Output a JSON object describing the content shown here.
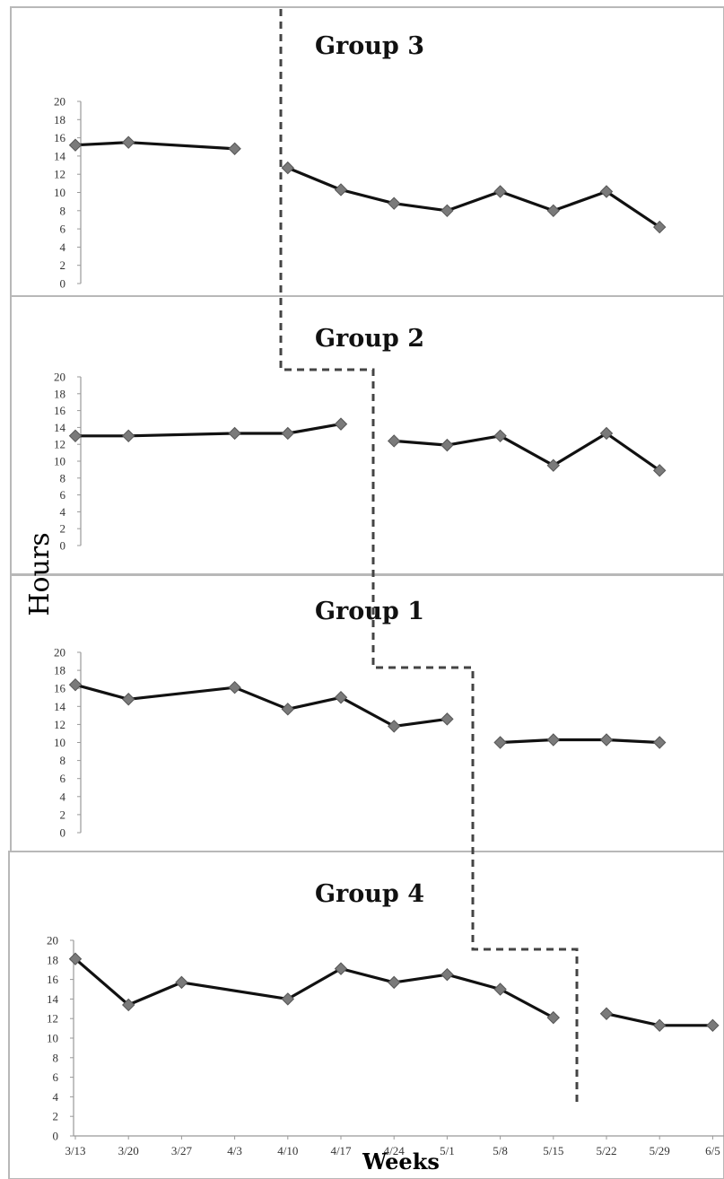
{
  "chart_data": {
    "type": "line",
    "ylabel": "Hours",
    "xlabel": "Weeks",
    "ylim": [
      0,
      20
    ],
    "yticks": [
      0,
      2,
      4,
      6,
      8,
      10,
      12,
      14,
      16,
      18,
      20
    ],
    "categories": [
      "3/13",
      "3/20",
      "3/27",
      "4/3",
      "4/10",
      "4/17",
      "4/24",
      "5/1",
      "5/8",
      "5/15",
      "5/22",
      "5/29",
      "6/5"
    ],
    "grid": false,
    "phase_change_line": "dashed",
    "panels": [
      {
        "title": "Group 3",
        "segments": [
          {
            "x": [
              "3/13",
              "3/20",
              "4/3"
            ],
            "values": [
              15.2,
              15.5,
              14.8
            ]
          },
          {
            "x": [
              "4/10",
              "4/17",
              "4/24",
              "5/1",
              "5/8",
              "5/15",
              "5/22",
              "5/29"
            ],
            "values": [
              12.7,
              10.3,
              8.8,
              8.0,
              10.1,
              8.0,
              10.1,
              6.2
            ]
          }
        ]
      },
      {
        "title": "Group 2",
        "segments": [
          {
            "x": [
              "3/13",
              "3/20",
              "4/3",
              "4/10",
              "4/17"
            ],
            "values": [
              13.0,
              13.0,
              13.3,
              13.3,
              14.4
            ]
          },
          {
            "x": [
              "4/24",
              "5/1",
              "5/8",
              "5/15",
              "5/22",
              "5/29"
            ],
            "values": [
              12.4,
              11.9,
              13.0,
              9.5,
              13.3,
              8.9
            ]
          }
        ]
      },
      {
        "title": "Group 1",
        "segments": [
          {
            "x": [
              "3/13",
              "3/20",
              "4/3",
              "4/10",
              "4/17",
              "4/24",
              "5/1"
            ],
            "values": [
              16.4,
              14.8,
              16.1,
              13.7,
              15.0,
              11.8,
              12.6
            ]
          },
          {
            "x": [
              "5/8",
              "5/15",
              "5/22",
              "5/29"
            ],
            "values": [
              10.0,
              10.3,
              10.3,
              10.0
            ]
          }
        ]
      },
      {
        "title": "Group 4",
        "segments": [
          {
            "x": [
              "3/13",
              "3/20",
              "3/27",
              "4/10",
              "4/17",
              "4/24",
              "5/1",
              "5/8",
              "5/15"
            ],
            "values": [
              18.1,
              13.4,
              15.7,
              14.0,
              17.1,
              15.7,
              16.5,
              15.0,
              12.1
            ]
          },
          {
            "x": [
              "5/22",
              "5/29",
              "6/5"
            ],
            "values": [
              12.5,
              11.3,
              11.3
            ]
          }
        ]
      }
    ]
  }
}
